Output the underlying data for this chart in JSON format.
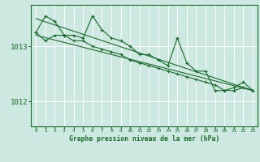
{
  "xlabel": "Graphe pression niveau de la mer (hPa)",
  "x_ticks": [
    0,
    1,
    2,
    3,
    4,
    5,
    6,
    7,
    8,
    9,
    10,
    11,
    12,
    13,
    14,
    15,
    16,
    17,
    18,
    19,
    20,
    21,
    22,
    23
  ],
  "xlim": [
    -0.5,
    23.5
  ],
  "ylim": [
    1011.55,
    1013.75
  ],
  "yticks": [
    1012,
    1013
  ],
  "bg_color": "#cce8e0",
  "grid_color": "#ffffff",
  "line_color": "#1a6b2a",
  "line1": [
    1013.25,
    1013.55,
    1013.45,
    1013.2,
    1013.2,
    1013.15,
    1013.55,
    1013.3,
    1013.15,
    1013.1,
    1013.0,
    1012.85,
    1012.85,
    1012.75,
    1012.65,
    1013.15,
    1012.7,
    1012.55,
    1012.55,
    1012.2,
    1012.2,
    1012.25,
    1012.35,
    1012.2
  ],
  "line2": [
    1013.25,
    1013.1,
    1013.2,
    1013.2,
    1013.1,
    1013.1,
    1013.0,
    1012.95,
    1012.9,
    1012.85,
    1012.75,
    1012.7,
    1012.65,
    1012.6,
    1012.55,
    1012.5,
    1012.45,
    1012.4,
    1012.35,
    1012.3,
    1012.2,
    1012.2,
    1012.25,
    1012.2
  ],
  "trend1": [
    1013.5,
    1012.2
  ],
  "trend1_x": [
    0,
    23
  ],
  "trend2": [
    1013.2,
    1012.2
  ],
  "trend2_x": [
    0,
    23
  ]
}
